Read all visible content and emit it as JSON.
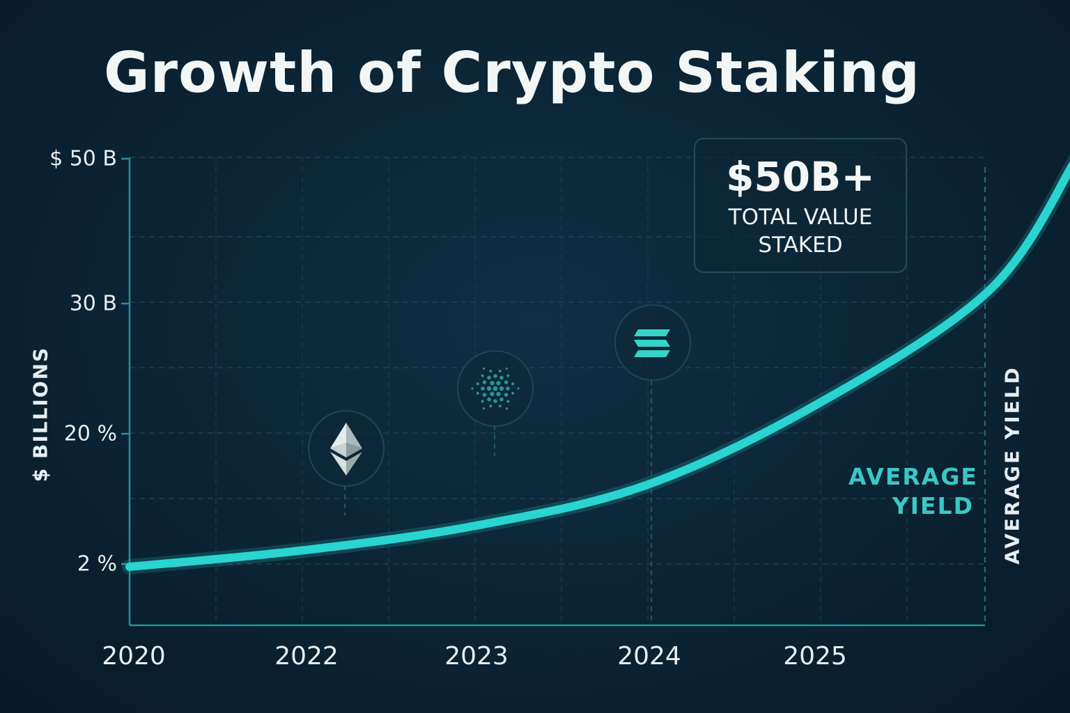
{
  "chart_data": {
    "type": "line",
    "title": "Growth of Crypto Staking",
    "ylabel": "$ BILLIONS",
    "ylabel_right": "AVERAGE YIELD",
    "x_ticks": [
      "2020",
      "2022",
      "2023",
      "2024",
      "2025"
    ],
    "y_ticks": [
      "$ 50 B",
      "30 B",
      "20 %",
      "2 %"
    ],
    "series": [
      {
        "x": [
          2020,
          2021,
          2022,
          2023,
          2024,
          2025,
          2025.5
        ],
        "values": [
          0,
          2,
          5,
          10,
          20,
          34,
          50
        ]
      }
    ],
    "color": "#2ad4d0",
    "grid": true,
    "annotations": {
      "callout_value": "$50B+",
      "callout_label": "TOTAL VALUE STAKED",
      "yield_note": "AVERAGE YIELD"
    },
    "icons": [
      "ethereum-icon",
      "cardano-icon",
      "solana-icon"
    ]
  }
}
